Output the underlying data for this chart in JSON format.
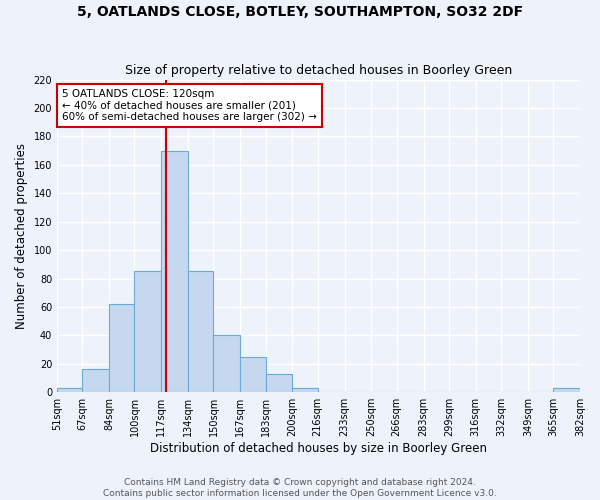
{
  "title": "5, OATLANDS CLOSE, BOTLEY, SOUTHAMPTON, SO32 2DF",
  "subtitle": "Size of property relative to detached houses in Boorley Green",
  "xlabel": "Distribution of detached houses by size in Boorley Green",
  "ylabel": "Number of detached properties",
  "bar_edges": [
    51,
    67,
    84,
    100,
    117,
    134,
    150,
    167,
    183,
    200,
    216,
    233,
    250,
    266,
    283,
    299,
    316,
    332,
    349,
    365,
    382
  ],
  "bar_heights": [
    3,
    16,
    62,
    85,
    170,
    85,
    40,
    25,
    13,
    3,
    0,
    0,
    0,
    0,
    0,
    0,
    0,
    0,
    0,
    3
  ],
  "bar_color": "#c5d8f0",
  "bar_edgecolor": "#6aaad4",
  "property_size": 120,
  "red_line_color": "#cc0000",
  "annotation_line1": "5 OATLANDS CLOSE: 120sqm",
  "annotation_line2": "← 40% of detached houses are smaller (201)",
  "annotation_line3": "60% of semi-detached houses are larger (302) →",
  "annotation_box_color": "white",
  "annotation_box_edgecolor": "#cc0000",
  "ylim": [
    0,
    220
  ],
  "yticks": [
    0,
    20,
    40,
    60,
    80,
    100,
    120,
    140,
    160,
    180,
    200,
    220
  ],
  "tick_labels": [
    "51sqm",
    "67sqm",
    "84sqm",
    "100sqm",
    "117sqm",
    "134sqm",
    "150sqm",
    "167sqm",
    "183sqm",
    "200sqm",
    "216sqm",
    "233sqm",
    "250sqm",
    "266sqm",
    "283sqm",
    "299sqm",
    "316sqm",
    "332sqm",
    "349sqm",
    "365sqm",
    "382sqm"
  ],
  "footer_text": "Contains HM Land Registry data © Crown copyright and database right 2024.\nContains public sector information licensed under the Open Government Licence v3.0.",
  "background_color": "#eef2fa",
  "grid_color": "#ffffff",
  "title_fontsize": 10,
  "subtitle_fontsize": 9,
  "axis_label_fontsize": 8.5,
  "tick_fontsize": 7,
  "footer_fontsize": 6.5
}
